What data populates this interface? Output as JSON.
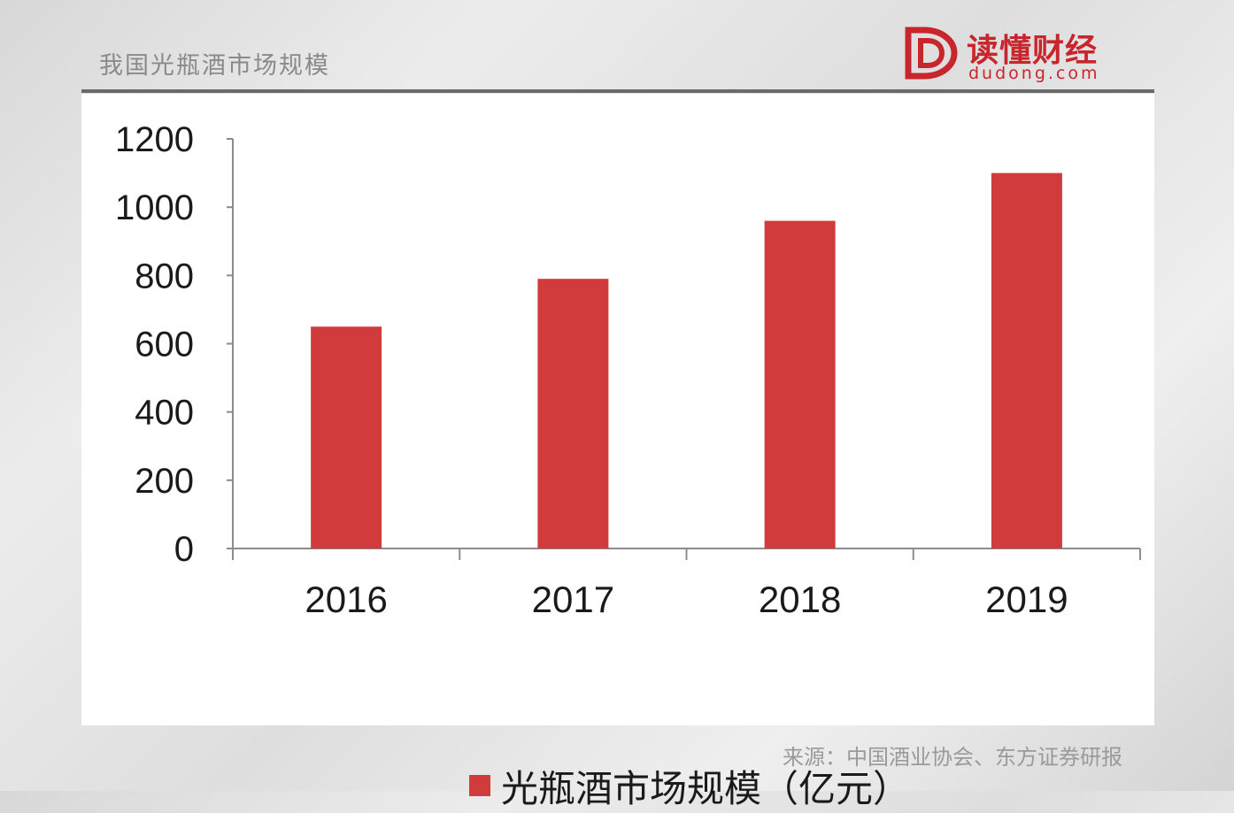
{
  "header": {
    "title": "我国光瓶酒市场规模"
  },
  "logo": {
    "name": "读懂财经",
    "url": "dudong.com"
  },
  "chart_data": {
    "type": "bar",
    "categories": [
      "2016",
      "2017",
      "2018",
      "2019"
    ],
    "series": [
      {
        "name": "光瓶酒市场规模（亿元）",
        "values": [
          650,
          790,
          960,
          1100
        ]
      }
    ],
    "ylim": [
      0,
      1200
    ],
    "yticks": [
      0,
      200,
      400,
      600,
      800,
      1000,
      1200
    ],
    "grid": false,
    "legend": "bottom",
    "bar_color": "#d13b3b"
  },
  "source": {
    "text": "来源：中国酒业协会、东方证券研报"
  },
  "colors": {
    "brand": "#c8252c",
    "bar": "#d13b3b"
  }
}
